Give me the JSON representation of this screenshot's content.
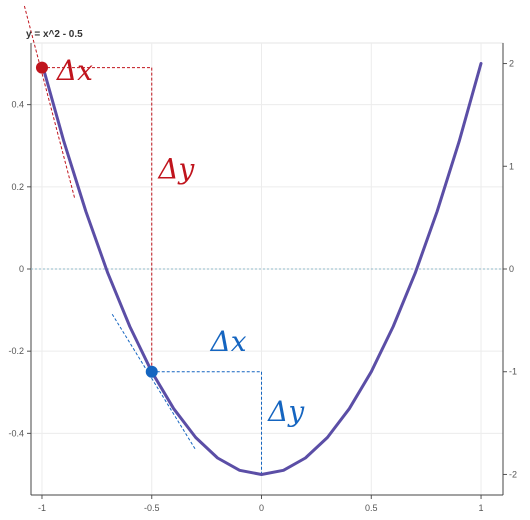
{
  "chart_data": {
    "type": "line",
    "title": "y = x^2 - 0.5",
    "xlim": [
      -1.05,
      1.1
    ],
    "ylim": [
      -0.55,
      0.55
    ],
    "right_ylim": [
      -2.2,
      2.2
    ],
    "x_ticks": [
      {
        "value": -1,
        "label": "-1"
      },
      {
        "value": -0.5,
        "label": "-0.5"
      },
      {
        "value": 0,
        "label": "0"
      },
      {
        "value": 0.5,
        "label": "0.5"
      },
      {
        "value": 1,
        "label": "1"
      }
    ],
    "y_ticks": [
      {
        "value": 0.4,
        "label": "0.4"
      },
      {
        "value": 0.2,
        "label": "0.2"
      },
      {
        "value": 0,
        "label": "0"
      },
      {
        "value": -0.2,
        "label": "-0.2"
      },
      {
        "value": -0.4,
        "label": "-0.4"
      }
    ],
    "right_y_ticks": [
      {
        "value": 2,
        "label": "2"
      },
      {
        "value": 1,
        "label": "1"
      },
      {
        "value": 0,
        "label": "0"
      },
      {
        "value": -1,
        "label": "-1"
      },
      {
        "value": -2,
        "label": "-2"
      }
    ],
    "grid": true,
    "curve": {
      "x": [
        -1,
        -0.9,
        -0.8,
        -0.7,
        -0.6,
        -0.5,
        -0.4,
        -0.3,
        -0.2,
        -0.1,
        0,
        0.1,
        0.2,
        0.3,
        0.4,
        0.5,
        0.6,
        0.7,
        0.8,
        0.9,
        1
      ],
      "y": [
        0.5,
        0.31,
        0.14,
        -0.01,
        -0.14,
        -0.25,
        -0.34,
        -0.41,
        -0.46,
        -0.49,
        -0.5,
        -0.49,
        -0.46,
        -0.41,
        -0.34,
        -0.25,
        -0.14,
        -0.01,
        0.14,
        0.31,
        0.5
      ],
      "color": "#5b4ea6"
    },
    "points": [
      {
        "x": -1,
        "y": 0.49,
        "color": "#c0141d"
      },
      {
        "x": -0.5,
        "y": -0.25,
        "color": "#1565c0"
      }
    ],
    "tangents": [
      {
        "x1": -1.08,
        "y1": 0.64,
        "x2": -0.85,
        "y2": 0.17,
        "color": "#c0141d"
      },
      {
        "x1": -0.68,
        "y1": -0.11,
        "x2": -0.3,
        "y2": -0.44,
        "color": "#1565c0"
      }
    ],
    "deltas": [
      {
        "fromX": -1,
        "fromY": 0.49,
        "toX": -0.5,
        "toY": -0.25,
        "color": "#c0141d",
        "dx_label": "Δx",
        "dy_label": "Δy",
        "dx_label_at": [
          -0.85,
          0.46
        ],
        "dy_label_at": [
          -0.47,
          0.22
        ]
      },
      {
        "fromX": -0.5,
        "fromY": -0.25,
        "toX": 0,
        "toY": -0.5,
        "color": "#1565c0",
        "dx_label": "Δx",
        "dy_label": "Δy",
        "dx_label_at": [
          -0.15,
          -0.2
        ],
        "dy_label_at": [
          0.03,
          -0.37
        ]
      }
    ]
  }
}
